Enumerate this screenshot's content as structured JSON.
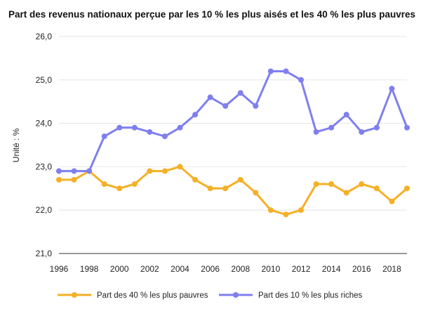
{
  "chart_data": {
    "type": "line",
    "title": "Part des revenus nationaux perçue par les 10 % les plus aisés et les 40 % les plus pauvres",
    "xlabel": "",
    "ylabel": "Unité : %",
    "x": [
      1996,
      1997,
      1998,
      1999,
      2000,
      2001,
      2002,
      2003,
      2004,
      2005,
      2006,
      2007,
      2008,
      2009,
      2010,
      2011,
      2012,
      2013,
      2014,
      2015,
      2016,
      2017,
      2018,
      2019
    ],
    "x_ticks": [
      "1996",
      "1998",
      "2000",
      "2002",
      "2004",
      "2006",
      "2008",
      "2010",
      "2012",
      "2014",
      "2016",
      "2018"
    ],
    "y_ticks": [
      "26,0",
      "25,0",
      "24,0",
      "23,0",
      "22,0",
      "21,0"
    ],
    "ylim": [
      21,
      26
    ],
    "xlim": [
      1996,
      2019
    ],
    "grid": "horizontal",
    "legend_position": "bottom",
    "series": [
      {
        "name": "Part des 40 % les plus pauvres",
        "color": "#f5b027",
        "values": [
          22.7,
          22.7,
          22.9,
          22.6,
          22.5,
          22.6,
          22.9,
          22.9,
          23.0,
          22.7,
          22.5,
          22.5,
          22.7,
          22.4,
          22.0,
          21.9,
          22.0,
          22.6,
          22.6,
          22.4,
          22.6,
          22.5,
          22.2,
          22.5
        ]
      },
      {
        "name": "Part des 10 % les plus riches",
        "color": "#7f7ff0",
        "values": [
          22.9,
          22.9,
          22.9,
          23.7,
          23.9,
          23.9,
          23.8,
          23.7,
          23.9,
          24.2,
          24.6,
          24.4,
          24.7,
          24.4,
          25.2,
          25.2,
          25.0,
          23.8,
          23.9,
          24.2,
          23.8,
          23.9,
          24.8,
          23.9
        ]
      }
    ]
  }
}
